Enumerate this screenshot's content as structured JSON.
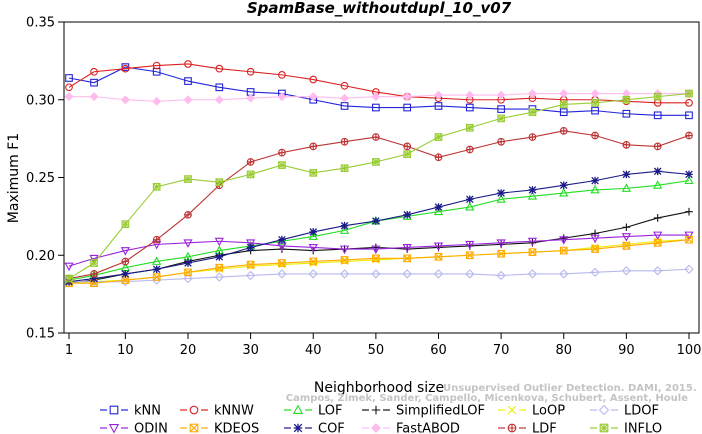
{
  "chart_data": {
    "type": "line",
    "title": "SpamBase_withoutdupl_10_v07",
    "xlabel": "Neighborhood size",
    "ylabel": "Maximum F1",
    "xlim": [
      0,
      100
    ],
    "ylim": [
      0.15,
      0.35
    ],
    "xticks": [
      1,
      10,
      20,
      30,
      40,
      50,
      60,
      70,
      80,
      90,
      100
    ],
    "yticks": [
      0.15,
      0.2,
      0.25,
      0.3,
      0.35
    ],
    "grid": false,
    "legend_position": "bottom",
    "watermark": [
      "Unsupervised Outlier Detection. DAMI, 2015.",
      "Campos, Zimek, Sander, Campello, Micenkova, Schubert, Assent, Houle"
    ],
    "series": [
      {
        "name": "kNN",
        "color": "#2424d8",
        "marker": "square",
        "x": [
          1,
          5,
          10,
          15,
          20,
          25,
          30,
          35,
          40,
          45,
          50,
          55,
          60,
          65,
          70,
          75,
          80,
          85,
          90,
          95,
          100
        ],
        "y": [
          0.314,
          0.311,
          0.321,
          0.318,
          0.312,
          0.308,
          0.305,
          0.304,
          0.3,
          0.296,
          0.295,
          0.295,
          0.296,
          0.295,
          0.294,
          0.294,
          0.292,
          0.293,
          0.291,
          0.29,
          0.29
        ]
      },
      {
        "name": "kNNW",
        "color": "#dd2020",
        "marker": "circle",
        "x": [
          1,
          5,
          10,
          15,
          20,
          25,
          30,
          35,
          40,
          45,
          50,
          55,
          60,
          65,
          70,
          75,
          80,
          85,
          90,
          95,
          100
        ],
        "y": [
          0.308,
          0.318,
          0.32,
          0.322,
          0.323,
          0.32,
          0.318,
          0.316,
          0.313,
          0.309,
          0.305,
          0.302,
          0.301,
          0.3,
          0.3,
          0.301,
          0.3,
          0.3,
          0.299,
          0.298,
          0.298
        ]
      },
      {
        "name": "LOF",
        "color": "#22dd22",
        "marker": "triangle",
        "x": [
          1,
          5,
          10,
          15,
          20,
          25,
          30,
          35,
          40,
          45,
          50,
          55,
          60,
          65,
          70,
          75,
          80,
          85,
          90,
          95,
          100
        ],
        "y": [
          0.184,
          0.187,
          0.192,
          0.196,
          0.199,
          0.203,
          0.206,
          0.209,
          0.212,
          0.216,
          0.222,
          0.225,
          0.228,
          0.231,
          0.236,
          0.238,
          0.24,
          0.242,
          0.243,
          0.245,
          0.248
        ]
      },
      {
        "name": "SimplifiedLOF",
        "color": "#111111",
        "marker": "plus",
        "x": [
          1,
          5,
          10,
          15,
          20,
          25,
          30,
          35,
          40,
          45,
          50,
          55,
          60,
          65,
          70,
          75,
          80,
          85,
          90,
          95,
          100
        ],
        "y": [
          0.182,
          0.184,
          0.188,
          0.191,
          0.196,
          0.2,
          0.203,
          0.204,
          0.203,
          0.204,
          0.205,
          0.204,
          0.205,
          0.206,
          0.207,
          0.208,
          0.211,
          0.214,
          0.218,
          0.224,
          0.228
        ]
      },
      {
        "name": "LoOP",
        "color": "#eeee00",
        "marker": "cross",
        "x": [
          1,
          5,
          10,
          15,
          20,
          25,
          30,
          35,
          40,
          45,
          50,
          55,
          60,
          65,
          70,
          75,
          80,
          85,
          90,
          95,
          100
        ],
        "y": [
          0.182,
          0.183,
          0.184,
          0.186,
          0.189,
          0.191,
          0.193,
          0.194,
          0.195,
          0.196,
          0.197,
          0.198,
          0.199,
          0.2,
          0.201,
          0.202,
          0.203,
          0.205,
          0.207,
          0.209,
          0.21
        ]
      },
      {
        "name": "LDOF",
        "color": "#b8b8ee",
        "marker": "diamond",
        "x": [
          1,
          5,
          10,
          15,
          20,
          25,
          30,
          35,
          40,
          45,
          50,
          55,
          60,
          65,
          70,
          75,
          80,
          85,
          90,
          95,
          100
        ],
        "y": [
          0.183,
          0.183,
          0.183,
          0.184,
          0.185,
          0.186,
          0.187,
          0.188,
          0.188,
          0.188,
          0.188,
          0.188,
          0.188,
          0.188,
          0.187,
          0.188,
          0.188,
          0.189,
          0.19,
          0.19,
          0.191
        ]
      },
      {
        "name": "ODIN",
        "color": "#9922dd",
        "marker": "triangle-down",
        "x": [
          1,
          5,
          10,
          15,
          20,
          25,
          30,
          35,
          40,
          45,
          50,
          55,
          60,
          65,
          70,
          75,
          80,
          85,
          90,
          95,
          100
        ],
        "y": [
          0.193,
          0.198,
          0.203,
          0.207,
          0.208,
          0.209,
          0.208,
          0.206,
          0.205,
          0.204,
          0.204,
          0.205,
          0.206,
          0.207,
          0.208,
          0.209,
          0.21,
          0.211,
          0.212,
          0.213,
          0.213
        ]
      },
      {
        "name": "KDEOS",
        "color": "#ffaa00",
        "marker": "square-x",
        "x": [
          1,
          5,
          10,
          15,
          20,
          25,
          30,
          35,
          40,
          45,
          50,
          55,
          60,
          65,
          70,
          75,
          80,
          85,
          90,
          95,
          100
        ],
        "y": [
          0.182,
          0.182,
          0.184,
          0.186,
          0.189,
          0.192,
          0.194,
          0.195,
          0.196,
          0.197,
          0.198,
          0.198,
          0.199,
          0.2,
          0.201,
          0.202,
          0.203,
          0.204,
          0.206,
          0.208,
          0.21
        ]
      },
      {
        "name": "COF",
        "color": "#1a1a88",
        "marker": "asterisk",
        "x": [
          1,
          5,
          10,
          15,
          20,
          25,
          30,
          35,
          40,
          45,
          50,
          55,
          60,
          65,
          70,
          75,
          80,
          85,
          90,
          95,
          100
        ],
        "y": [
          0.183,
          0.185,
          0.188,
          0.191,
          0.195,
          0.199,
          0.205,
          0.21,
          0.215,
          0.219,
          0.222,
          0.226,
          0.231,
          0.236,
          0.24,
          0.242,
          0.245,
          0.248,
          0.252,
          0.254,
          0.252
        ]
      },
      {
        "name": "FastABOD",
        "color": "#ffbbee",
        "marker": "diamond-filled",
        "x": [
          1,
          5,
          10,
          15,
          20,
          25,
          30,
          35,
          40,
          45,
          50,
          55,
          60,
          65,
          70,
          75,
          80,
          85,
          90,
          95,
          100
        ],
        "y": [
          0.302,
          0.302,
          0.3,
          0.299,
          0.3,
          0.3,
          0.301,
          0.302,
          0.302,
          0.301,
          0.302,
          0.302,
          0.303,
          0.303,
          0.303,
          0.304,
          0.304,
          0.304,
          0.304,
          0.304,
          0.304
        ]
      },
      {
        "name": "LDF",
        "color": "#bb3333",
        "marker": "circle-plus",
        "x": [
          1,
          5,
          10,
          15,
          20,
          25,
          30,
          35,
          40,
          45,
          50,
          55,
          60,
          65,
          70,
          75,
          80,
          85,
          90,
          95,
          100
        ],
        "y": [
          0.185,
          0.188,
          0.196,
          0.21,
          0.226,
          0.245,
          0.26,
          0.266,
          0.27,
          0.273,
          0.276,
          0.27,
          0.263,
          0.268,
          0.273,
          0.276,
          0.28,
          0.277,
          0.271,
          0.27,
          0.277
        ]
      },
      {
        "name": "INFLO",
        "color": "#99cc33",
        "marker": "star-box",
        "x": [
          1,
          5,
          10,
          15,
          20,
          25,
          30,
          35,
          40,
          45,
          50,
          55,
          60,
          65,
          70,
          75,
          80,
          85,
          90,
          95,
          100
        ],
        "y": [
          0.185,
          0.195,
          0.22,
          0.244,
          0.249,
          0.247,
          0.252,
          0.258,
          0.253,
          0.256,
          0.26,
          0.265,
          0.276,
          0.282,
          0.288,
          0.292,
          0.297,
          0.298,
          0.3,
          0.302,
          0.304
        ]
      }
    ]
  }
}
